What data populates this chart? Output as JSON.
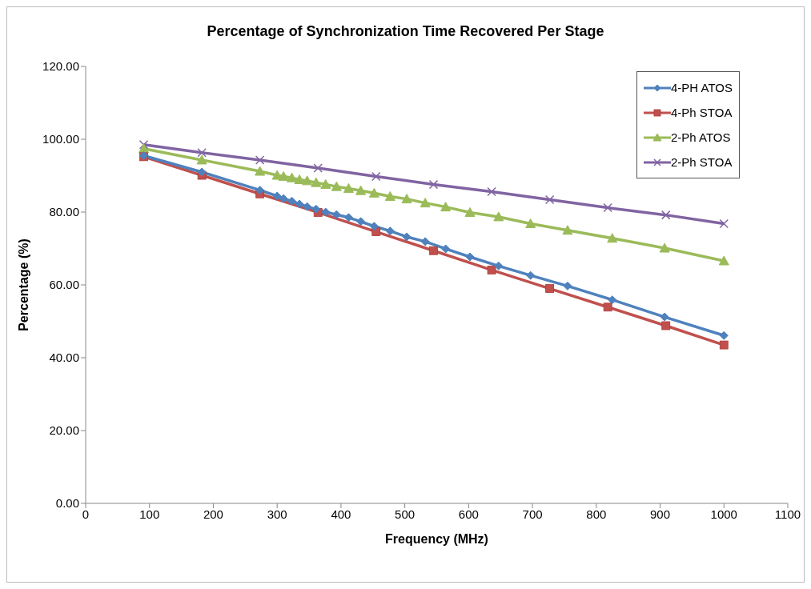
{
  "chart_data": {
    "type": "line",
    "title": "Percentage of Synchronization Time Recovered Per Stage",
    "xlabel": "Frequency (MHz)",
    "ylabel": "Percentage (%)",
    "xlim": [
      0,
      1100
    ],
    "xticks": [
      0,
      100,
      200,
      300,
      400,
      500,
      600,
      700,
      800,
      900,
      1000,
      1100
    ],
    "ylim": [
      0,
      120
    ],
    "yticks": [
      {
        "value": 0,
        "label": "0.00"
      },
      {
        "value": 20,
        "label": "20.00"
      },
      {
        "value": 40,
        "label": "40.00"
      },
      {
        "value": 60,
        "label": "60.00"
      },
      {
        "value": 80,
        "label": "80.00"
      },
      {
        "value": 100,
        "label": "100.00"
      },
      {
        "value": 120,
        "label": "120.00"
      }
    ],
    "grid": false,
    "legend": "top right",
    "series": [
      {
        "name": "4-PH ATOS",
        "color": "#4f81bd",
        "marker": "diamond",
        "x": [
          91,
          182,
          273,
          300,
          310,
          323,
          335,
          347,
          361,
          376,
          393,
          412,
          431,
          452,
          477,
          503,
          532,
          564,
          602,
          647,
          697,
          755,
          825,
          907,
          1000
        ],
        "values": [
          95.5,
          91.0,
          86.0,
          84.4,
          83.7,
          83.0,
          82.2,
          81.5,
          80.8,
          80.0,
          79.3,
          78.5,
          77.4,
          76.1,
          74.8,
          73.2,
          71.9,
          69.9,
          67.7,
          65.2,
          62.6,
          59.7,
          55.9,
          51.2,
          46.1
        ]
      },
      {
        "name": "4-Ph STOA",
        "color": "#c0504d",
        "marker": "square",
        "x": [
          91,
          182,
          273,
          364,
          455,
          545,
          636,
          727,
          818,
          909,
          1000
        ],
        "values": [
          95.2,
          90.1,
          85.0,
          79.9,
          74.6,
          69.4,
          64.1,
          59.0,
          53.9,
          48.8,
          43.5
        ]
      },
      {
        "name": "2-Ph ATOS",
        "color": "#9bbb59",
        "marker": "triangle",
        "x": [
          91,
          182,
          273,
          300,
          310,
          323,
          335,
          347,
          361,
          376,
          393,
          412,
          431,
          452,
          477,
          503,
          532,
          564,
          602,
          647,
          697,
          755,
          825,
          907,
          1000
        ],
        "values": [
          97.4,
          94.3,
          91.2,
          90.1,
          89.8,
          89.4,
          88.9,
          88.6,
          88.1,
          87.6,
          87.0,
          86.5,
          85.9,
          85.2,
          84.3,
          83.6,
          82.5,
          81.4,
          79.9,
          78.7,
          76.8,
          75.0,
          72.8,
          70.1,
          66.6
        ]
      },
      {
        "name": "2-Ph STOA",
        "color": "#8064a2",
        "marker": "cross",
        "x": [
          91,
          182,
          273,
          364,
          455,
          545,
          636,
          727,
          818,
          909,
          1000
        ],
        "values": [
          98.5,
          96.3,
          94.3,
          92.1,
          89.8,
          87.6,
          85.6,
          83.4,
          81.2,
          79.2,
          76.8
        ]
      }
    ]
  }
}
